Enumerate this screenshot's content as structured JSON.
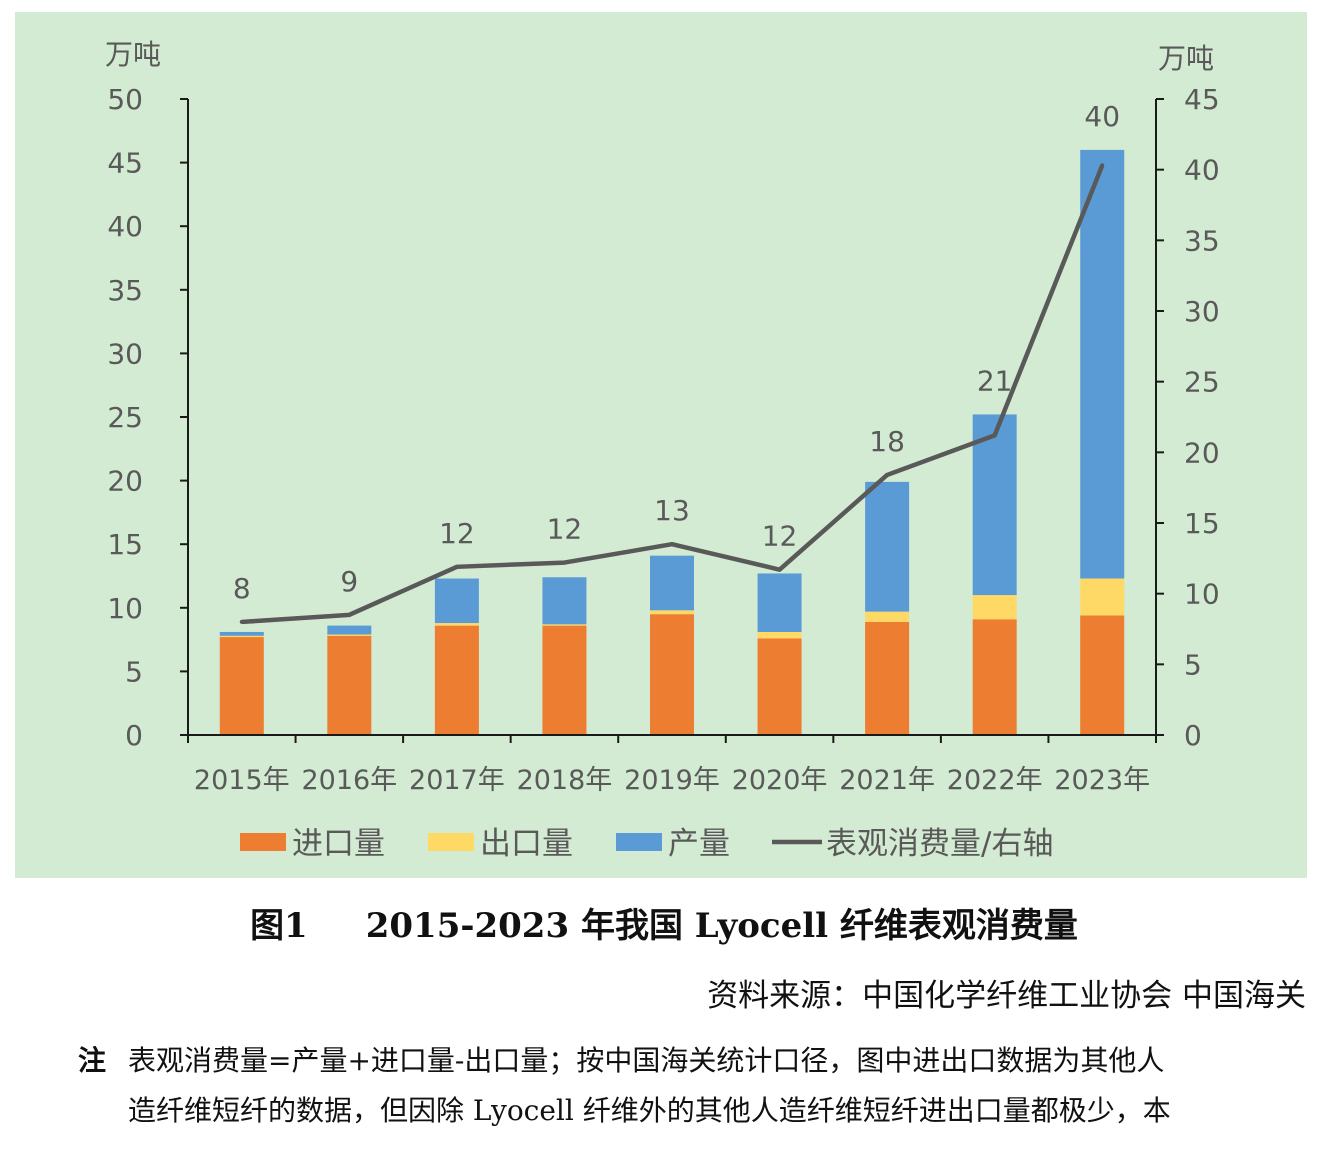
{
  "chart_data": {
    "type": "bar",
    "stacked": true,
    "categories": [
      "2015年",
      "2016年",
      "2017年",
      "2018年",
      "2019年",
      "2020年",
      "2021年",
      "2022年",
      "2023年"
    ],
    "left_axis": {
      "unit": "万吨",
      "min": 0,
      "max": 50,
      "step": 5,
      "ticks": [
        "0",
        "5",
        "10",
        "15",
        "20",
        "25",
        "30",
        "35",
        "40",
        "45",
        "50"
      ]
    },
    "right_axis": {
      "unit": "万吨",
      "min": 0,
      "max": 45,
      "step": 5,
      "ticks": [
        "0",
        "5",
        "10",
        "15",
        "20",
        "25",
        "30",
        "35",
        "40",
        "45"
      ]
    },
    "series": [
      {
        "name": "进口量",
        "type": "bar",
        "axis": "left",
        "color": "#ed7d31",
        "values": [
          7.7,
          7.8,
          8.6,
          8.6,
          9.5,
          7.6,
          8.9,
          9.1,
          9.4
        ]
      },
      {
        "name": "出口量",
        "type": "bar",
        "axis": "left",
        "color": "#ffd966",
        "values": [
          0.1,
          0.1,
          0.2,
          0.1,
          0.3,
          0.5,
          0.8,
          1.9,
          2.9
        ]
      },
      {
        "name": "产量",
        "type": "bar",
        "axis": "left",
        "color": "#5b9bd5",
        "values": [
          0.3,
          0.7,
          3.5,
          3.7,
          4.3,
          4.6,
          10.2,
          14.2,
          33.7
        ]
      },
      {
        "name": "表观消费量/右轴",
        "type": "line",
        "axis": "right",
        "color": "#595959",
        "values": [
          8.0,
          8.5,
          11.9,
          12.2,
          13.5,
          11.7,
          18.4,
          21.2,
          40.3
        ],
        "labels": [
          "8",
          "9",
          "12",
          "12",
          "13",
          "12",
          "18",
          "21",
          "40"
        ]
      }
    ],
    "legend_position": "bottom"
  },
  "caption": {
    "fig_no": "图1",
    "title": "2015-2023 年我国 Lyocell 纤维表观消费量"
  },
  "source": "资料来源：中国化学纤维工业协会 中国海关",
  "note": {
    "label": "注",
    "lines": [
      "表观消费量=产量+进口量-出口量；按中国海关统计口径，图中进出口数据为其他人",
      "造纤维短纤的数据，但因除 Lyocell 纤维外的其他人造纤维短纤进出口量都极少，本"
    ]
  }
}
